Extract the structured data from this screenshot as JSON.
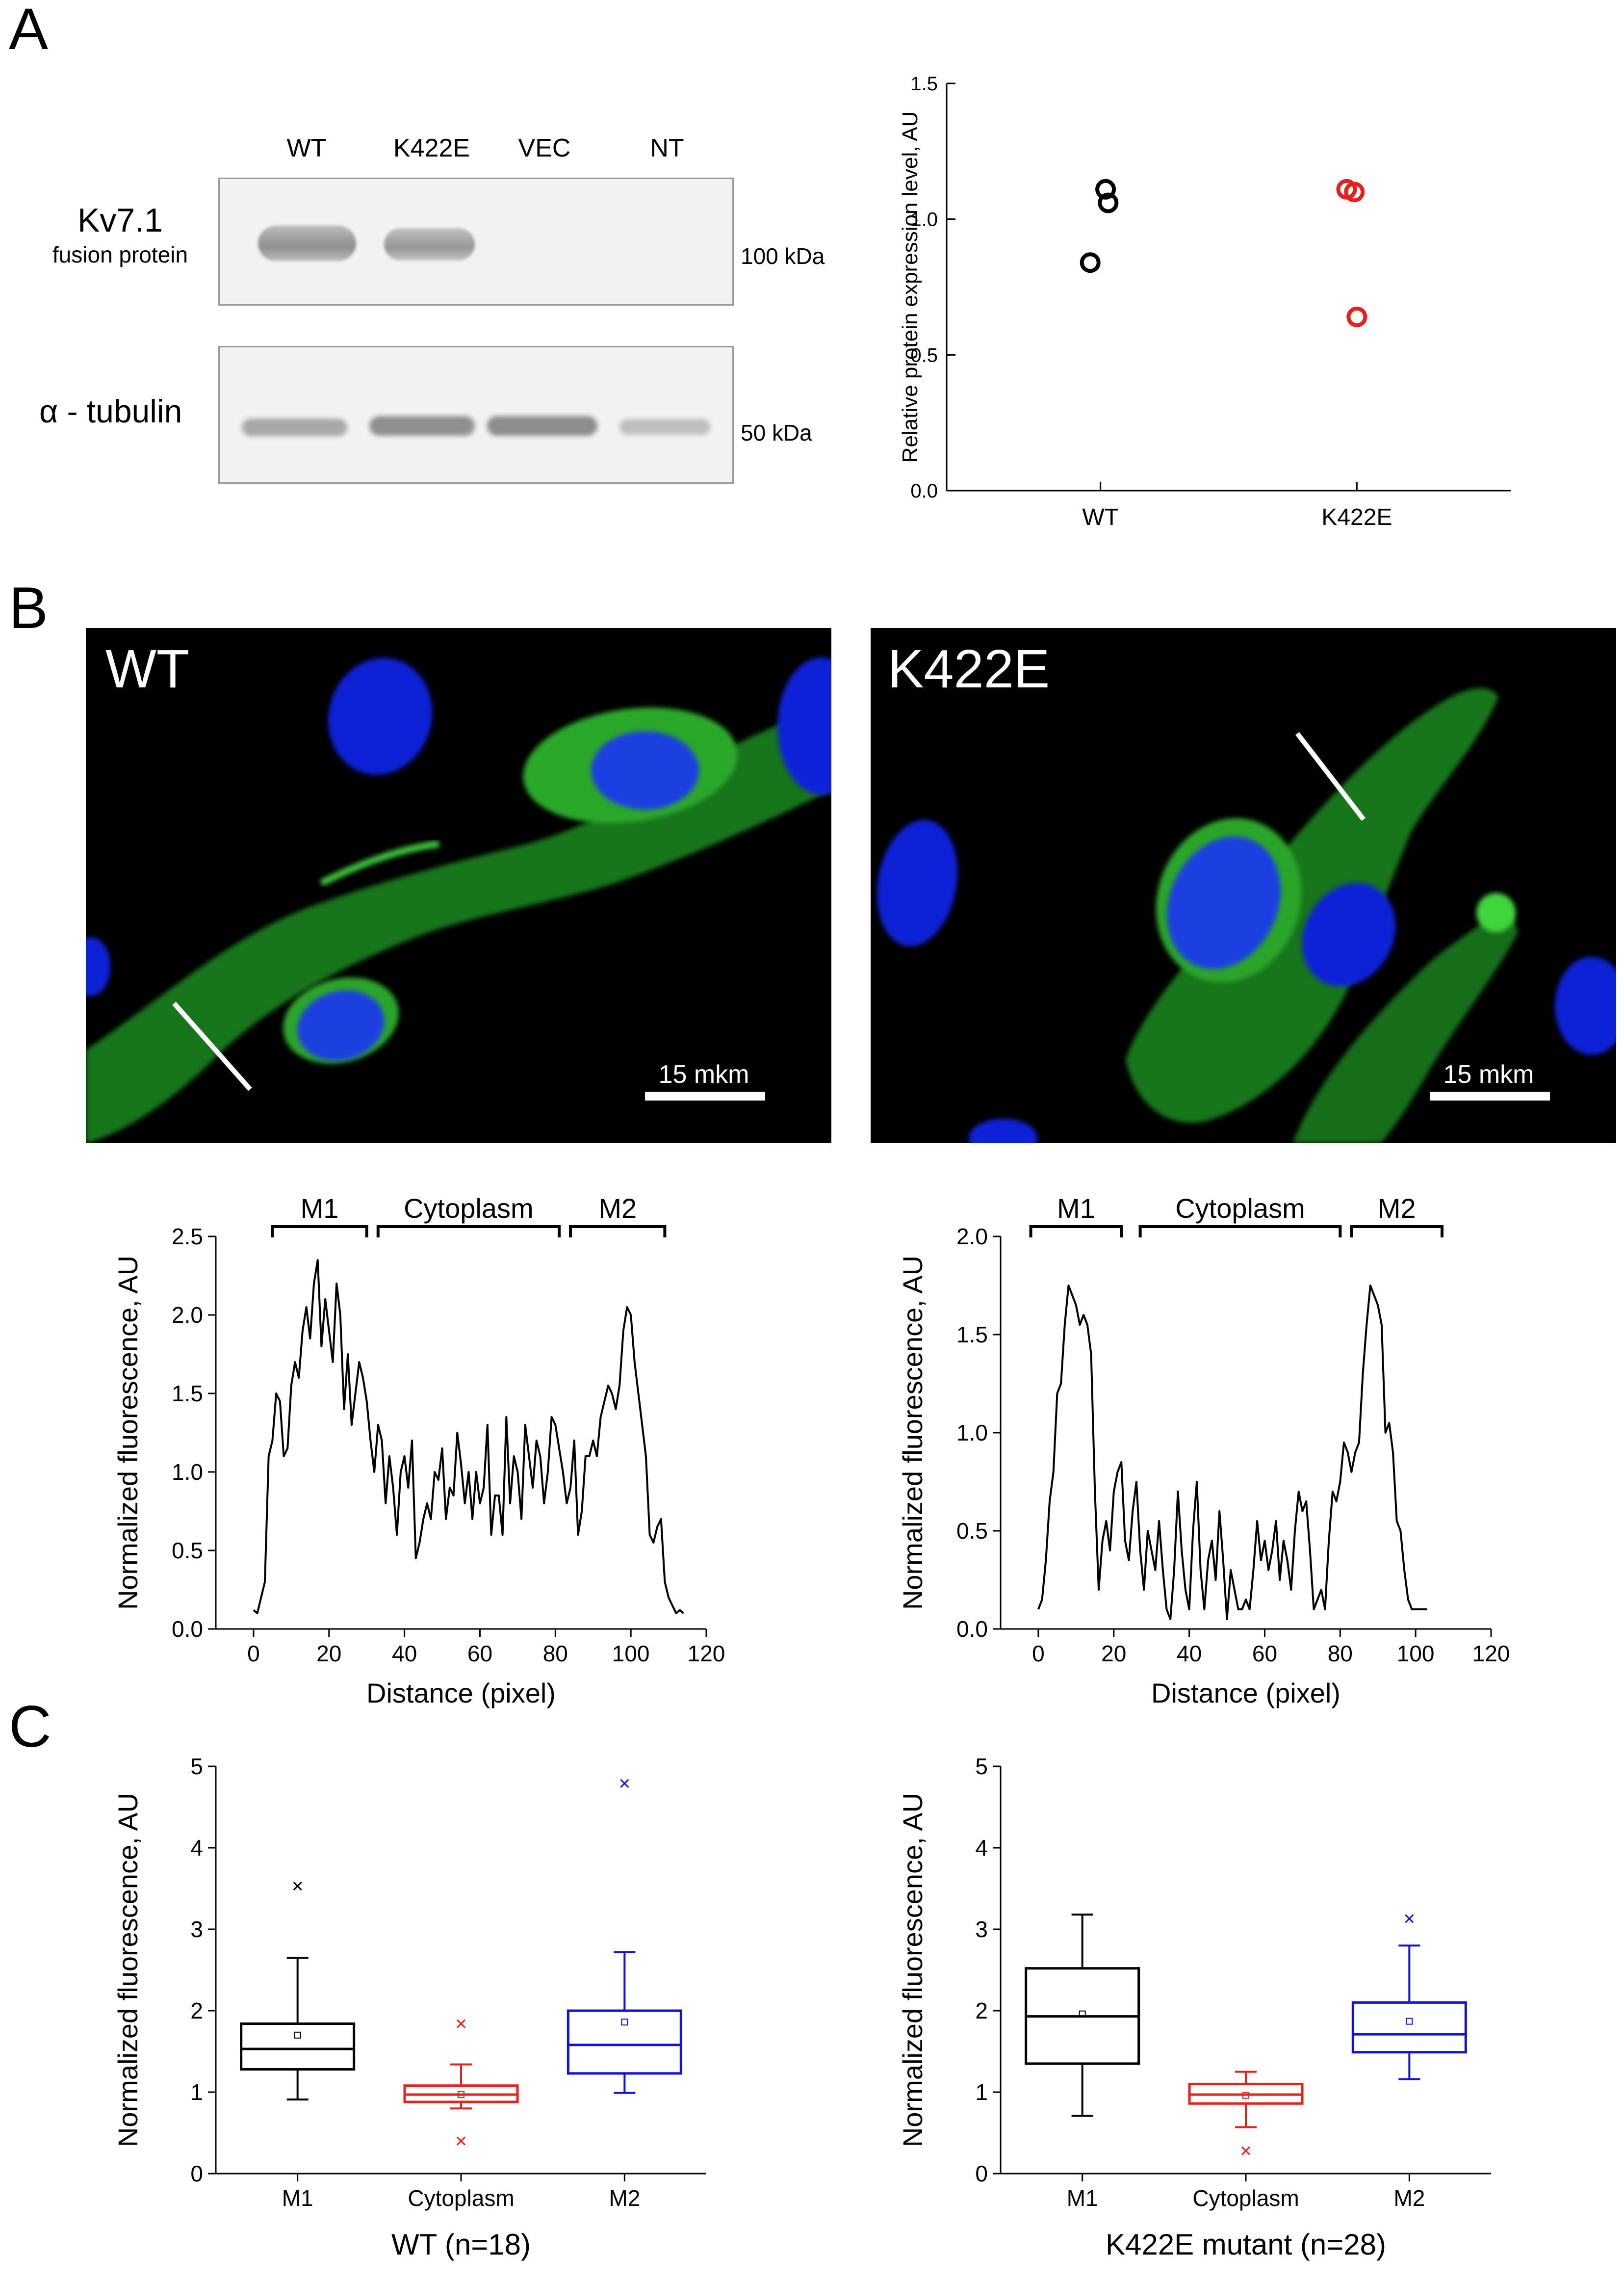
{
  "panels": {
    "A": "A",
    "B": "B",
    "C": "C"
  },
  "western_blot": {
    "lanes": [
      "WT",
      "K422E",
      "VEC",
      "NT"
    ],
    "row1_label_main": "Kv7.1",
    "row1_label_sub": "fusion protein",
    "row1_mw": "100 kDa",
    "row2_label": "α - tubulin",
    "row2_mw": "50 kDa"
  },
  "micrographs": {
    "left_label": "WT",
    "right_label": "K422E",
    "scale_label_left": "15 mkm",
    "scale_label_right": "15 mkm"
  },
  "chart_data": [
    {
      "id": "expression",
      "type": "scatter",
      "ylabel": "Relative protein expression level, AU",
      "xlabel": "",
      "categories": [
        "WT",
        "K422E"
      ],
      "ylim": [
        0,
        1.5
      ],
      "yticks": [
        "0.0",
        "0.5",
        "1.0",
        "1.5"
      ],
      "colors": [
        "#000000",
        "#e8201a"
      ],
      "points": [
        {
          "cat": 0,
          "x": 0.96,
          "y": 0.84
        },
        {
          "cat": 0,
          "x": 1.02,
          "y": 1.11
        },
        {
          "cat": 0,
          "x": 1.03,
          "y": 1.06
        },
        {
          "cat": 1,
          "x": 1.96,
          "y": 1.11
        },
        {
          "cat": 1,
          "x": 1.99,
          "y": 1.1
        },
        {
          "cat": 1,
          "x": 2.0,
          "y": 0.64
        }
      ]
    },
    {
      "id": "profile-wt",
      "type": "line",
      "xlabel": "Distance (pixel)",
      "ylabel": "Normalized fluorescence, AU",
      "xlim": [
        -10,
        120
      ],
      "ylim": [
        0,
        2.5
      ],
      "xticks": [
        "0",
        "20",
        "40",
        "60",
        "80",
        "100",
        "120"
      ],
      "yticks": [
        "0.0",
        "0.5",
        "1.0",
        "1.5",
        "2.0",
        "2.5"
      ],
      "regions": [
        {
          "label": "M1",
          "x0": 5,
          "x1": 30
        },
        {
          "label": "Cytoplasm",
          "x0": 33,
          "x1": 81
        },
        {
          "label": "M2",
          "x0": 84,
          "x1": 109
        }
      ],
      "x": [
        0,
        1,
        2,
        3,
        4,
        5,
        6,
        7,
        8,
        9,
        10,
        11,
        12,
        13,
        14,
        15,
        16,
        17,
        18,
        19,
        20,
        21,
        22,
        23,
        24,
        25,
        26,
        27,
        28,
        29,
        30,
        31,
        32,
        33,
        34,
        35,
        36,
        37,
        38,
        39,
        40,
        41,
        42,
        43,
        44,
        45,
        46,
        47,
        48,
        49,
        50,
        51,
        52,
        53,
        54,
        55,
        56,
        57,
        58,
        59,
        60,
        61,
        62,
        63,
        64,
        65,
        66,
        67,
        68,
        69,
        70,
        71,
        72,
        73,
        74,
        75,
        76,
        77,
        78,
        79,
        80,
        81,
        82,
        83,
        84,
        85,
        86,
        87,
        88,
        89,
        90,
        91,
        92,
        93,
        94,
        95,
        96,
        97,
        98,
        99,
        100,
        101,
        102,
        103,
        104,
        105,
        106,
        107,
        108,
        109,
        110,
        111,
        112,
        113,
        114
      ],
      "y": [
        0.12,
        0.1,
        0.2,
        0.3,
        1.1,
        1.2,
        1.5,
        1.45,
        1.1,
        1.15,
        1.55,
        1.7,
        1.6,
        1.9,
        2.05,
        1.85,
        2.2,
        2.35,
        1.8,
        2.1,
        1.9,
        1.7,
        2.2,
        2.0,
        1.4,
        1.75,
        1.3,
        1.5,
        1.7,
        1.6,
        1.45,
        1.2,
        1.0,
        1.3,
        1.2,
        0.8,
        1.1,
        0.9,
        0.6,
        1.0,
        1.1,
        0.9,
        1.2,
        0.45,
        0.55,
        0.7,
        0.8,
        0.7,
        1.0,
        0.95,
        1.15,
        0.7,
        0.9,
        0.85,
        1.25,
        1.05,
        0.8,
        1.0,
        0.7,
        1.0,
        0.8,
        0.9,
        1.3,
        0.6,
        0.85,
        0.85,
        0.6,
        1.35,
        0.8,
        1.1,
        1.0,
        0.7,
        1.3,
        1.1,
        0.9,
        1.2,
        1.1,
        0.8,
        1.0,
        1.35,
        1.3,
        1.15,
        1.0,
        0.8,
        0.9,
        1.2,
        0.6,
        0.75,
        1.1,
        1.1,
        1.2,
        1.1,
        1.35,
        1.45,
        1.55,
        1.5,
        1.4,
        1.55,
        1.9,
        2.05,
        2.0,
        1.7,
        1.5,
        1.3,
        1.1,
        0.6,
        0.55,
        0.65,
        0.7,
        0.3,
        0.2,
        0.15,
        0.1,
        0.12,
        0.1
      ]
    },
    {
      "id": "profile-k422e",
      "type": "line",
      "xlabel": "Distance (pixel)",
      "ylabel": "Normalized fluorescence, AU",
      "xlim": [
        -10,
        120
      ],
      "ylim": [
        0,
        2.0
      ],
      "xticks": [
        "0",
        "20",
        "40",
        "60",
        "80",
        "100",
        "120"
      ],
      "yticks": [
        "0.0",
        "0.5",
        "1.0",
        "1.5",
        "2.0"
      ],
      "regions": [
        {
          "label": "M1",
          "x0": -2,
          "x1": 22
        },
        {
          "label": "Cytoplasm",
          "x0": 27,
          "x1": 80
        },
        {
          "label": "M2",
          "x0": 83,
          "x1": 107
        }
      ],
      "x": [
        0,
        1,
        2,
        3,
        4,
        5,
        6,
        7,
        8,
        9,
        10,
        11,
        12,
        13,
        14,
        15,
        16,
        17,
        18,
        19,
        20,
        21,
        22,
        23,
        24,
        25,
        26,
        27,
        28,
        29,
        30,
        31,
        32,
        33,
        34,
        35,
        36,
        37,
        38,
        39,
        40,
        41,
        42,
        43,
        44,
        45,
        46,
        47,
        48,
        49,
        50,
        51,
        52,
        53,
        54,
        55,
        56,
        57,
        58,
        59,
        60,
        61,
        62,
        63,
        64,
        65,
        66,
        67,
        68,
        69,
        70,
        71,
        72,
        73,
        74,
        75,
        76,
        77,
        78,
        79,
        80,
        81,
        82,
        83,
        84,
        85,
        86,
        87,
        88,
        89,
        90,
        91,
        92,
        93,
        94,
        95,
        96,
        97,
        98,
        99,
        100,
        101,
        102,
        103
      ],
      "y": [
        0.1,
        0.15,
        0.35,
        0.65,
        0.8,
        1.2,
        1.25,
        1.55,
        1.75,
        1.7,
        1.65,
        1.55,
        1.6,
        1.55,
        1.4,
        0.7,
        0.2,
        0.45,
        0.55,
        0.4,
        0.7,
        0.8,
        0.85,
        0.45,
        0.35,
        0.6,
        0.75,
        0.4,
        0.2,
        0.5,
        0.4,
        0.3,
        0.55,
        0.3,
        0.1,
        0.05,
        0.3,
        0.7,
        0.4,
        0.2,
        0.1,
        0.5,
        0.75,
        0.3,
        0.1,
        0.35,
        0.45,
        0.25,
        0.6,
        0.35,
        0.05,
        0.3,
        0.2,
        0.1,
        0.1,
        0.15,
        0.1,
        0.3,
        0.55,
        0.35,
        0.45,
        0.3,
        0.4,
        0.55,
        0.25,
        0.45,
        0.35,
        0.2,
        0.5,
        0.7,
        0.6,
        0.65,
        0.4,
        0.1,
        0.15,
        0.2,
        0.1,
        0.45,
        0.7,
        0.65,
        0.75,
        0.95,
        0.9,
        0.8,
        0.9,
        0.95,
        1.3,
        1.55,
        1.75,
        1.7,
        1.65,
        1.55,
        1.0,
        1.05,
        0.9,
        0.55,
        0.5,
        0.3,
        0.15,
        0.1,
        0.1,
        0.1,
        0.1,
        0.1
      ]
    },
    {
      "id": "box-wt",
      "type": "box",
      "xlabel": "WT (n=18)",
      "ylabel": "Normalized fluorescence, AU",
      "ylim": [
        0,
        5
      ],
      "yticks": [
        "0",
        "1",
        "2",
        "3",
        "4",
        "5"
      ],
      "categories": [
        "M1",
        "Cytoplasm",
        "M2"
      ],
      "colors": [
        "#000000",
        "#e8201a",
        "#1010e0"
      ],
      "boxes": [
        {
          "q1": 1.28,
          "median": 1.53,
          "q3": 1.84,
          "whisker_low": 0.91,
          "whisker_high": 2.65,
          "mean": 1.7,
          "outliers": [
            3.53
          ]
        },
        {
          "q1": 0.88,
          "median": 0.97,
          "q3": 1.08,
          "whisker_low": 0.8,
          "whisker_high": 1.34,
          "mean": 0.97,
          "outliers": [
            1.84,
            0.4
          ]
        },
        {
          "q1": 1.23,
          "median": 1.58,
          "q3": 2.0,
          "whisker_low": 0.99,
          "whisker_high": 2.72,
          "mean": 1.86,
          "outliers": [
            4.79
          ]
        }
      ]
    },
    {
      "id": "box-k422e",
      "type": "box",
      "xlabel": "K422E mutant (n=28)",
      "ylabel": "Normalized fluorescence, AU",
      "ylim": [
        0,
        5
      ],
      "yticks": [
        "0",
        "1",
        "2",
        "3",
        "4",
        "5"
      ],
      "categories": [
        "M1",
        "Cytoplasm",
        "M2"
      ],
      "colors": [
        "#000000",
        "#e8201a",
        "#1010e0"
      ],
      "boxes": [
        {
          "q1": 1.35,
          "median": 1.93,
          "q3": 2.52,
          "whisker_low": 0.71,
          "whisker_high": 3.18,
          "mean": 1.96,
          "outliers": []
        },
        {
          "q1": 0.86,
          "median": 0.97,
          "q3": 1.1,
          "whisker_low": 0.57,
          "whisker_high": 1.25,
          "mean": 0.96,
          "outliers": [
            0.28
          ]
        },
        {
          "q1": 1.49,
          "median": 1.71,
          "q3": 2.1,
          "whisker_low": 1.16,
          "whisker_high": 2.8,
          "mean": 1.87,
          "outliers": [
            3.13
          ]
        }
      ]
    }
  ]
}
